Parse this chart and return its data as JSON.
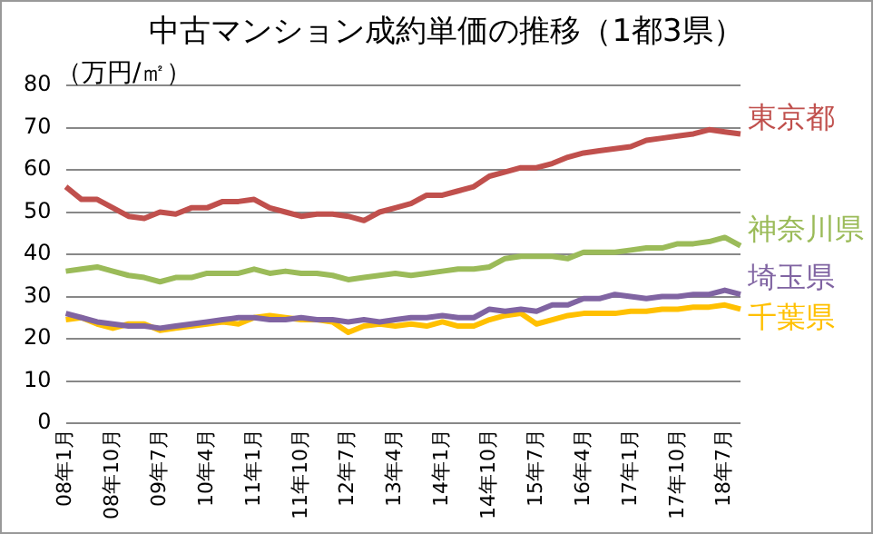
{
  "chart_data": {
    "type": "line",
    "title": "中古マンション成約単価の推移（1都3県）",
    "ylabel": "（万円/㎡）",
    "categories": [
      "08年1月",
      null,
      null,
      "08年10月",
      null,
      null,
      "09年7月",
      null,
      null,
      "10年4月",
      null,
      null,
      "11年1月",
      null,
      null,
      "11年10月",
      null,
      null,
      "12年7月",
      null,
      null,
      "13年4月",
      null,
      null,
      "14年1月",
      null,
      null,
      "14年10月",
      null,
      null,
      "15年7月",
      null,
      null,
      "16年4月",
      null,
      null,
      "17年1月",
      null,
      null,
      "17年10月",
      null,
      null,
      "18年7月",
      null
    ],
    "series": [
      {
        "name": "東京都",
        "color": "#c0504d",
        "values": [
          56,
          53,
          53,
          51,
          49,
          48.5,
          50,
          49.5,
          51,
          51,
          52.5,
          52.5,
          53,
          51,
          50,
          49,
          49.5,
          49.5,
          49,
          48,
          50,
          51,
          52,
          54,
          54,
          55,
          56,
          58.5,
          59.5,
          60.5,
          60.5,
          61.5,
          63,
          64,
          64.5,
          65,
          65.5,
          67,
          67.5,
          68,
          68.5,
          69.5,
          69,
          68.5
        ]
      },
      {
        "name": "神奈川県",
        "color": "#9bbb59",
        "values": [
          36,
          36.5,
          37,
          36,
          35,
          34.5,
          33.5,
          34.5,
          34.5,
          35.5,
          35.5,
          35.5,
          36.5,
          35.5,
          36,
          35.5,
          35.5,
          35,
          34,
          34.5,
          35,
          35.5,
          35,
          35.5,
          36,
          36.5,
          36.5,
          37,
          39,
          39.5,
          39.5,
          39.5,
          39,
          40.5,
          40.5,
          40.5,
          41,
          41.5,
          41.5,
          42.5,
          42.5,
          43,
          44,
          42
        ]
      },
      {
        "name": "埼玉県",
        "color": "#8064a2",
        "values": [
          26,
          25,
          24,
          23.5,
          23,
          23,
          22.5,
          23,
          23.5,
          24,
          24.5,
          25,
          25,
          24.5,
          24.5,
          25,
          24.5,
          24.5,
          24,
          24.5,
          24,
          24.5,
          25,
          25,
          25.5,
          25,
          25,
          27,
          26.5,
          27,
          26.5,
          28,
          28,
          29.5,
          29.5,
          30.5,
          30,
          29.5,
          30,
          30,
          30.5,
          30.5,
          31.5,
          30.5
        ]
      },
      {
        "name": "千葉県",
        "color": "#ffc000",
        "values": [
          24.5,
          25,
          23.5,
          22.5,
          23.5,
          23.5,
          22,
          22.5,
          23,
          23.5,
          24,
          23.5,
          25,
          25.5,
          25,
          24.5,
          24.5,
          24,
          21.5,
          23,
          23.5,
          23,
          23.5,
          23,
          24,
          23,
          23,
          24.5,
          25.5,
          26,
          23.5,
          24.5,
          25.5,
          26,
          26,
          26,
          26.5,
          26.5,
          27,
          27,
          27.5,
          27.5,
          28,
          27
        ]
      }
    ],
    "ylim": [
      0,
      80
    ],
    "yticks": [
      0,
      10,
      20,
      30,
      40,
      50,
      60,
      70,
      80
    ],
    "grid": "y",
    "legend": false,
    "marker": "none",
    "line_style": "solid"
  }
}
